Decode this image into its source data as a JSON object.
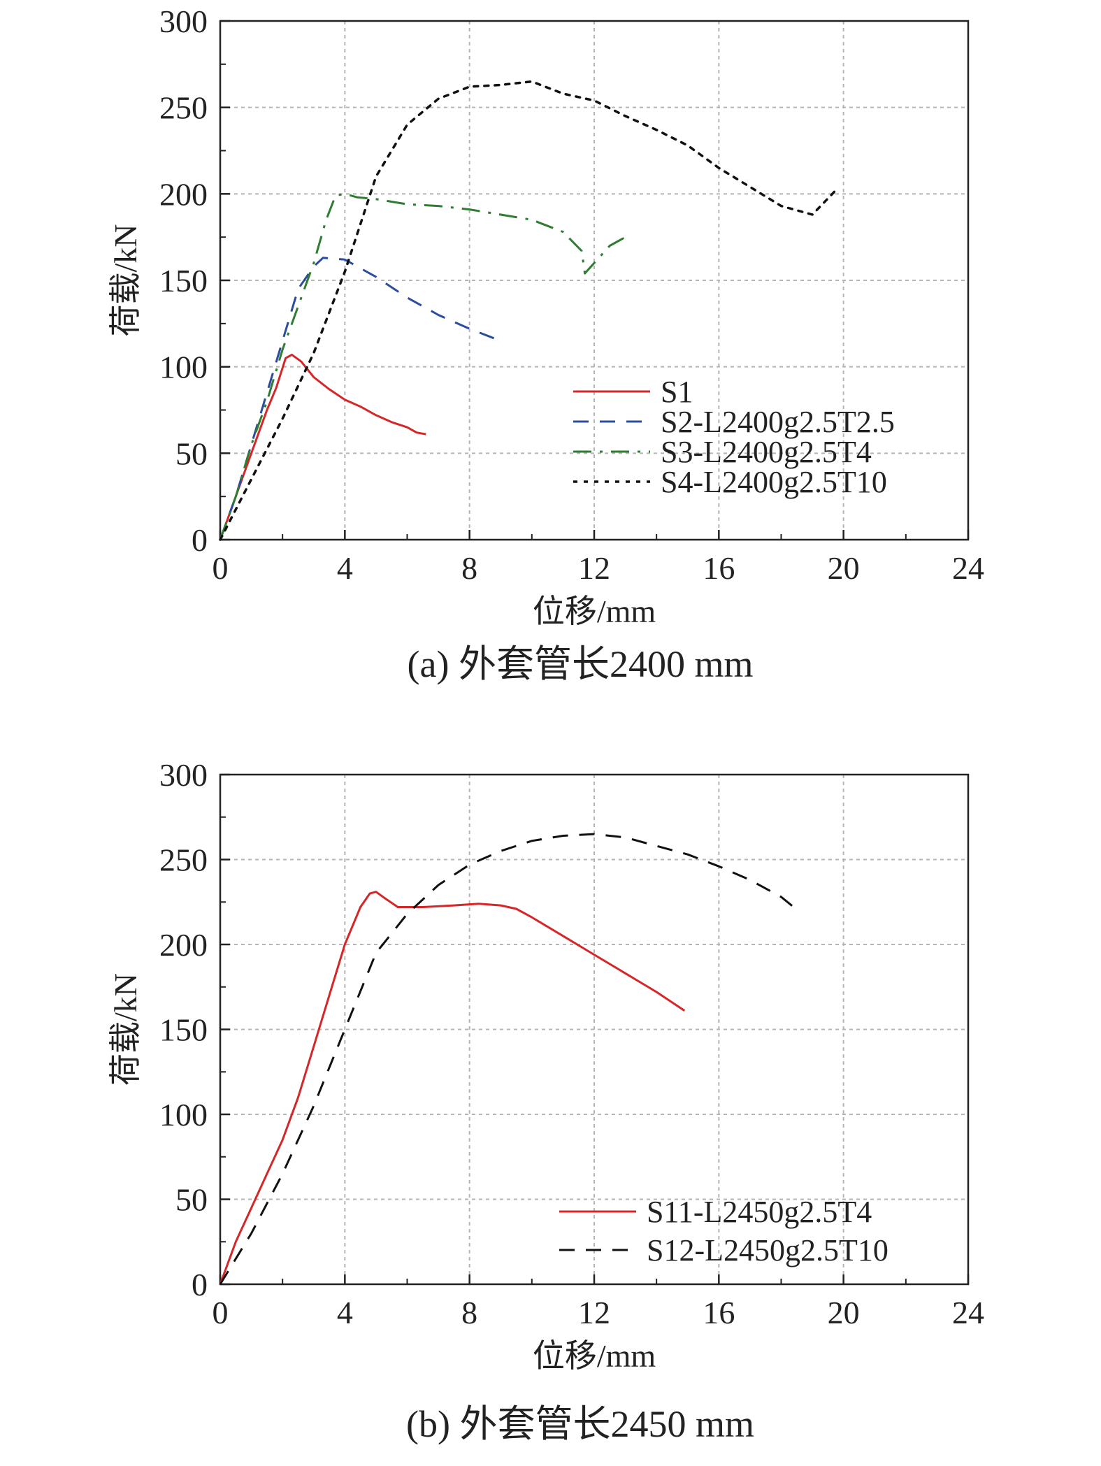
{
  "chart_data": [
    {
      "type": "line",
      "caption": "(a) 外套管长2400 mm",
      "xlabel": "位移/mm",
      "ylabel": "荷载/kN",
      "xlim": [
        0,
        24
      ],
      "ylim": [
        0,
        300
      ],
      "xticks": [
        "0",
        "4",
        "8",
        "12",
        "16",
        "20",
        "24"
      ],
      "yticks": [
        "0",
        "50",
        "100",
        "150",
        "200",
        "250",
        "300"
      ],
      "grid": true,
      "legend_position": "bottom-right",
      "series": [
        {
          "name": "S1",
          "color": "#d62728",
          "dash": "solid",
          "points": [
            [
              0,
              0
            ],
            [
              0.3,
              15
            ],
            [
              0.7,
              35
            ],
            [
              1.1,
              55
            ],
            [
              1.5,
              75
            ],
            [
              1.8,
              88
            ],
            [
              2.1,
              105
            ],
            [
              2.3,
              107
            ],
            [
              2.6,
              103
            ],
            [
              3.0,
              94
            ],
            [
              3.5,
              87
            ],
            [
              4.0,
              81
            ],
            [
              4.5,
              77
            ],
            [
              5.0,
              72
            ],
            [
              5.5,
              68
            ],
            [
              6.0,
              65
            ],
            [
              6.3,
              62
            ],
            [
              6.6,
              61
            ]
          ]
        },
        {
          "name": "S2-L2400g2.5T2.5",
          "color": "#2b4c9f",
          "dash": "dashed",
          "points": [
            [
              0,
              0
            ],
            [
              0.5,
              25
            ],
            [
              1.0,
              55
            ],
            [
              1.5,
              85
            ],
            [
              2.0,
              115
            ],
            [
              2.5,
              145
            ],
            [
              3.0,
              158
            ],
            [
              3.3,
              163
            ],
            [
              4.0,
              162
            ],
            [
              5.0,
              152
            ],
            [
              6.0,
              140
            ],
            [
              7.0,
              130
            ],
            [
              8.0,
              122
            ],
            [
              9.0,
              115
            ]
          ]
        },
        {
          "name": "S3-L2400g2.5T4",
          "color": "#2e7d32",
          "dash": "dashdot",
          "points": [
            [
              0,
              0
            ],
            [
              0.5,
              25
            ],
            [
              1.0,
              55
            ],
            [
              1.5,
              80
            ],
            [
              2.0,
              110
            ],
            [
              2.5,
              135
            ],
            [
              3.0,
              160
            ],
            [
              3.4,
              185
            ],
            [
              3.7,
              199
            ],
            [
              4.0,
              200
            ],
            [
              4.4,
              198
            ],
            [
              5.0,
              197
            ],
            [
              6.0,
              194
            ],
            [
              7.0,
              193
            ],
            [
              8.0,
              191
            ],
            [
              9.0,
              188
            ],
            [
              10.0,
              185
            ],
            [
              11.0,
              178
            ],
            [
              11.6,
              167
            ],
            [
              11.7,
              154
            ],
            [
              12.0,
              160
            ],
            [
              12.5,
              170
            ],
            [
              13.0,
              175
            ]
          ]
        },
        {
          "name": "S4-L2400g2.5T10",
          "color": "#111111",
          "dash": "dotted",
          "points": [
            [
              0,
              0
            ],
            [
              1.0,
              35
            ],
            [
              2.0,
              70
            ],
            [
              3.0,
              108
            ],
            [
              4.0,
              155
            ],
            [
              5.0,
              210
            ],
            [
              6.0,
              240
            ],
            [
              7.0,
              255
            ],
            [
              8.0,
              262
            ],
            [
              9.0,
              263
            ],
            [
              10.0,
              265
            ],
            [
              11.0,
              258
            ],
            [
              12.0,
              254
            ],
            [
              13.0,
              245
            ],
            [
              14.0,
              237
            ],
            [
              15.0,
              228
            ],
            [
              16.0,
              215
            ],
            [
              17.0,
              204
            ],
            [
              18.0,
              193
            ],
            [
              19.0,
              188
            ],
            [
              19.8,
              203
            ]
          ]
        }
      ]
    },
    {
      "type": "line",
      "caption": "(b) 外套管长2450 mm",
      "xlabel": "位移/mm",
      "ylabel": "荷载/kN",
      "xlim": [
        0,
        24
      ],
      "ylim": [
        0,
        300
      ],
      "xticks": [
        "0",
        "4",
        "8",
        "12",
        "16",
        "20",
        "24"
      ],
      "yticks": [
        "0",
        "50",
        "100",
        "150",
        "200",
        "250",
        "300"
      ],
      "grid": true,
      "legend_position": "bottom-right",
      "series": [
        {
          "name": "S11-L2450g2.5T4",
          "color": "#d62728",
          "dash": "solid",
          "points": [
            [
              0,
              0
            ],
            [
              0.5,
              25
            ],
            [
              1.0,
              45
            ],
            [
              1.5,
              65
            ],
            [
              2.0,
              85
            ],
            [
              2.5,
              110
            ],
            [
              3.0,
              140
            ],
            [
              3.5,
              170
            ],
            [
              4.0,
              200
            ],
            [
              4.5,
              222
            ],
            [
              4.8,
              230
            ],
            [
              5.0,
              231
            ],
            [
              5.3,
              227
            ],
            [
              5.7,
              222
            ],
            [
              6.5,
              222
            ],
            [
              7.5,
              223
            ],
            [
              8.3,
              224
            ],
            [
              9.0,
              223
            ],
            [
              9.5,
              221
            ],
            [
              10.0,
              216
            ],
            [
              11.0,
              205
            ],
            [
              12.0,
              194
            ],
            [
              13.0,
              183
            ],
            [
              14.0,
              172
            ],
            [
              14.9,
              161
            ]
          ]
        },
        {
          "name": "S12-L2450g2.5T10",
          "color": "#111111",
          "dash": "dashed",
          "points": [
            [
              0,
              0
            ],
            [
              1.0,
              30
            ],
            [
              2.0,
              65
            ],
            [
              3.0,
              105
            ],
            [
              4.0,
              150
            ],
            [
              5.0,
              195
            ],
            [
              6.0,
              218
            ],
            [
              7.0,
              235
            ],
            [
              8.0,
              247
            ],
            [
              9.0,
              255
            ],
            [
              10.0,
              261
            ],
            [
              11.0,
              264
            ],
            [
              12.0,
              265
            ],
            [
              13.0,
              263
            ],
            [
              14.0,
              258
            ],
            [
              15.0,
              253
            ],
            [
              16.0,
              246
            ],
            [
              17.0,
              238
            ],
            [
              18.0,
              228
            ],
            [
              18.4,
              222
            ]
          ]
        }
      ]
    }
  ]
}
